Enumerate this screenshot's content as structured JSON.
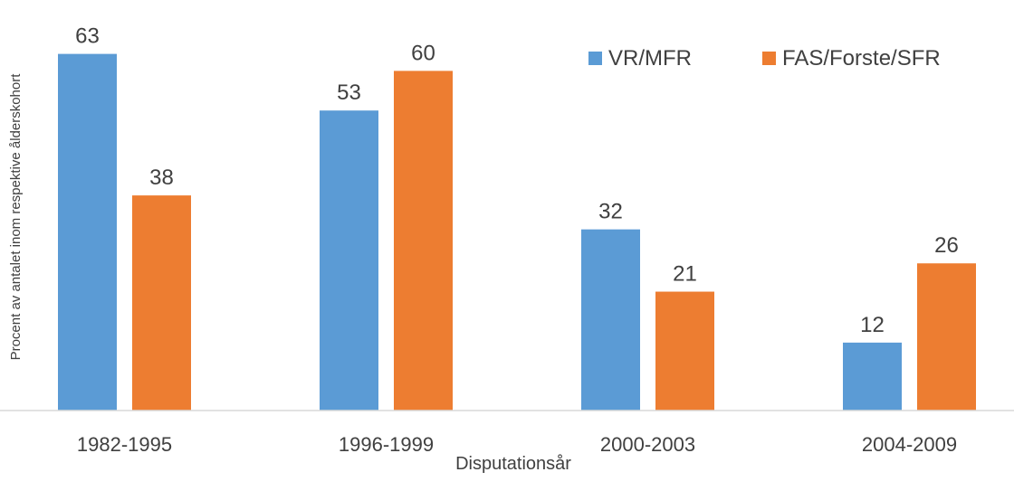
{
  "chart_data": {
    "type": "bar",
    "title": "",
    "xlabel": "Disputationsår",
    "ylabel": "Procent av antalet inom respektive ålderskohort",
    "categories": [
      "1982-1995",
      "1996-1999",
      "2000-2003",
      "2004-2009"
    ],
    "series": [
      {
        "name": "VR/MFR",
        "values": [
          63,
          53,
          32,
          12
        ],
        "color": "#5B9BD5"
      },
      {
        "name": "FAS/Forste/SFR",
        "values": [
          38,
          60,
          21,
          26
        ],
        "color": "#ED7D31"
      }
    ],
    "ylim": [
      0,
      70
    ],
    "grid": false,
    "legend": "top-right",
    "data_labels": true
  }
}
